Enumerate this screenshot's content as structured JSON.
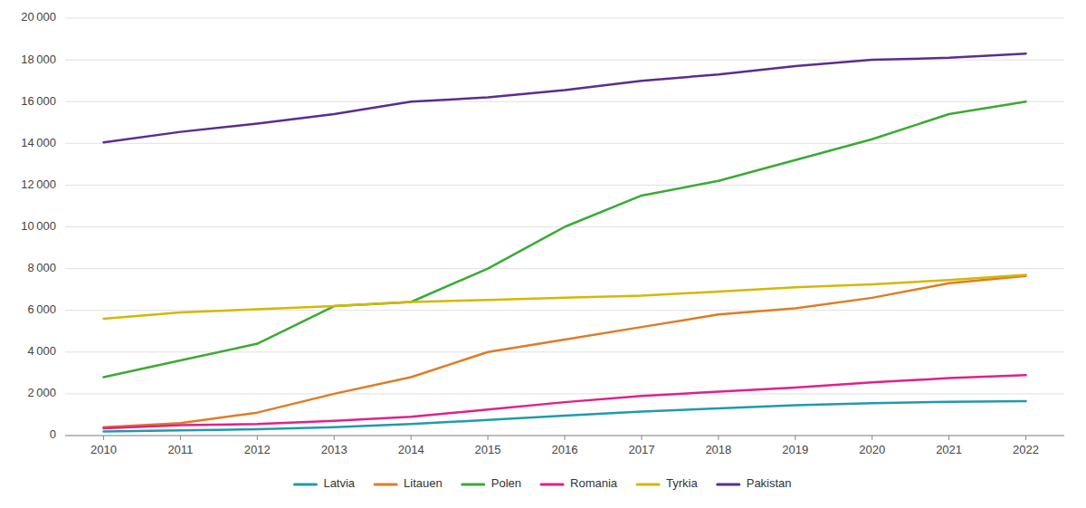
{
  "chart_data": {
    "type": "line",
    "x": [
      2010,
      2011,
      2012,
      2013,
      2014,
      2015,
      2016,
      2017,
      2018,
      2019,
      2020,
      2021,
      2022
    ],
    "series": [
      {
        "name": "Latvia",
        "color": "#1f9bab",
        "values": [
          200,
          250,
          300,
          400,
          550,
          750,
          950,
          1150,
          1300,
          1450,
          1550,
          1620,
          1650
        ]
      },
      {
        "name": "Litauen",
        "color": "#e07b22",
        "values": [
          400,
          600,
          1100,
          2000,
          2800,
          4000,
          4600,
          5200,
          5800,
          6100,
          6600,
          7300,
          7650
        ]
      },
      {
        "name": "Polen",
        "color": "#3aaa35",
        "values": [
          2800,
          3600,
          4400,
          6200,
          6400,
          8000,
          10000,
          11500,
          12200,
          13200,
          14200,
          15400,
          16000
        ]
      },
      {
        "name": "Romania",
        "color": "#e0218a",
        "values": [
          350,
          500,
          550,
          700,
          900,
          1250,
          1600,
          1900,
          2100,
          2300,
          2550,
          2750,
          2900
        ]
      },
      {
        "name": "Tyrkia",
        "color": "#d4b800",
        "values": [
          5600,
          5900,
          6050,
          6200,
          6400,
          6500,
          6600,
          6700,
          6900,
          7100,
          7250,
          7450,
          7700
        ]
      },
      {
        "name": "Pakistan",
        "color": "#5b2d8e",
        "values": [
          14050,
          14550,
          14950,
          15400,
          16000,
          16200,
          16550,
          17000,
          17300,
          17700,
          18000,
          18100,
          18300
        ]
      }
    ],
    "xlim": [
      2009.5,
      2022.5
    ],
    "xticks": [
      2010,
      2011,
      2012,
      2013,
      2014,
      2015,
      2016,
      2017,
      2018,
      2019,
      2020,
      2021,
      2022
    ],
    "ylim": [
      0,
      20000
    ],
    "yticks": [
      0,
      {
        "value": 2000,
        "label": "2 000"
      },
      {
        "value": 4000,
        "label": "4 000"
      },
      {
        "value": 6000,
        "label": "6 000"
      },
      {
        "value": 8000,
        "label": "8 000"
      },
      {
        "value": 10000,
        "label": "10 000"
      },
      {
        "value": 12000,
        "label": "12 000"
      },
      {
        "value": 14000,
        "label": "14 000"
      },
      {
        "value": 16000,
        "label": "16 000"
      },
      {
        "value": 18000,
        "label": "18 000"
      },
      {
        "value": 20000,
        "label": "20 000"
      }
    ],
    "grid": true,
    "legend": "bottom"
  }
}
